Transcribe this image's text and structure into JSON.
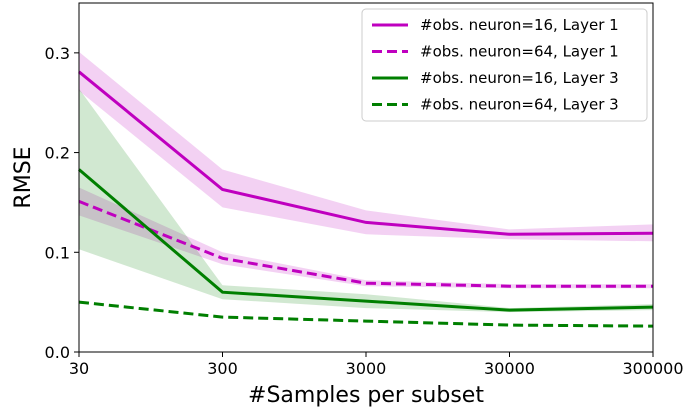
{
  "chart_data": {
    "type": "line",
    "title": "",
    "xlabel": "#Samples per subset",
    "ylabel": "RMSE",
    "x_scale": "log",
    "x": [
      30,
      300,
      3000,
      30000,
      300000
    ],
    "x_tick_labels": [
      "30",
      "300",
      "3000",
      "30000",
      "300000"
    ],
    "ylim": [
      0.0,
      0.35
    ],
    "y_ticks": [
      0.0,
      0.1,
      0.2,
      0.3
    ],
    "y_tick_labels": [
      "0.0",
      "0.1",
      "0.2",
      "0.3"
    ],
    "grid": false,
    "legend_position": "top-right",
    "series": [
      {
        "name": "#obs. neuron=16, Layer 1",
        "color": "#bf00bf",
        "line_style": "solid",
        "values": [
          0.281,
          0.163,
          0.13,
          0.118,
          0.119
        ],
        "lower": [
          0.262,
          0.145,
          0.118,
          0.113,
          0.111
        ],
        "upper": [
          0.301,
          0.183,
          0.142,
          0.123,
          0.128
        ]
      },
      {
        "name": "#obs. neuron=64, Layer 1",
        "color": "#bf00bf",
        "line_style": "dashed",
        "values": [
          0.151,
          0.094,
          0.069,
          0.066,
          0.066
        ],
        "lower": [
          0.137,
          0.088,
          0.066,
          0.064,
          0.064
        ],
        "upper": [
          0.165,
          0.1,
          0.072,
          0.068,
          0.068
        ]
      },
      {
        "name": "#obs. neuron=16, Layer 3",
        "color": "#007f00",
        "line_style": "solid",
        "values": [
          0.183,
          0.06,
          0.051,
          0.042,
          0.045
        ],
        "lower": [
          0.103,
          0.053,
          0.044,
          0.04,
          0.042
        ],
        "upper": [
          0.264,
          0.067,
          0.058,
          0.044,
          0.048
        ]
      },
      {
        "name": "#obs. neuron=64, Layer 3",
        "color": "#007f00",
        "line_style": "dashed",
        "values": [
          0.05,
          0.035,
          0.031,
          0.027,
          0.026
        ],
        "lower": [
          0.05,
          0.035,
          0.031,
          0.027,
          0.026
        ],
        "upper": [
          0.05,
          0.035,
          0.031,
          0.027,
          0.026
        ]
      }
    ]
  }
}
